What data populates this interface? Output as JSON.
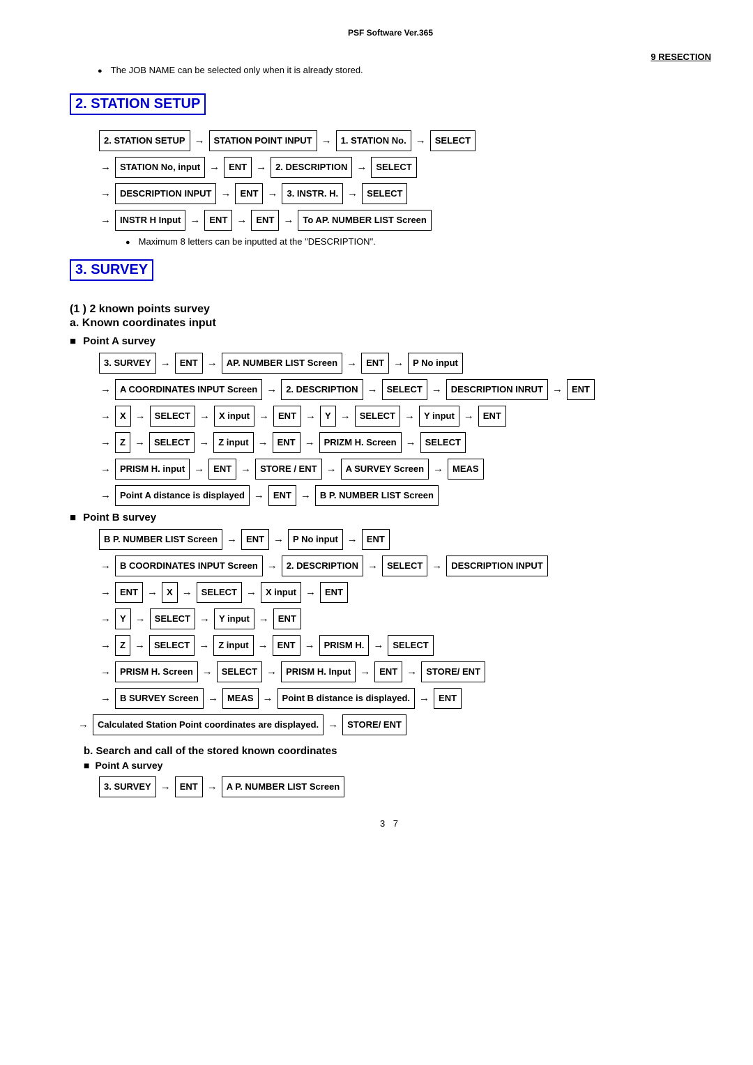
{
  "header": "PSF Software Ver.365",
  "topRight": "9   RESECTION",
  "intro": "The JOB NAME can be selected only when it is already stored.",
  "section2": {
    "title": "2. STATION SETUP",
    "lines": [
      [
        "2. STATION SETUP",
        "→",
        "STATION POINT INPUT",
        "→",
        "1. STATION No.",
        "→",
        "SELECT"
      ],
      [
        "→",
        "STATION No, input",
        "→",
        "ENT",
        "→",
        "2. DESCRIPTION",
        "→",
        "SELECT"
      ],
      [
        "→",
        "DESCRIPTION INPUT",
        "→",
        "ENT",
        "→",
        "3. INSTR. H.",
        "→",
        "SELECT"
      ],
      [
        "→",
        "INSTR H Input",
        "→",
        "ENT",
        "→",
        "ENT",
        "→",
        "To AP. NUMBER LIST Screen"
      ]
    ],
    "note": "Maximum 8 letters can be inputted at the \"DESCRIPTION\"."
  },
  "section3": {
    "title": "3. SURVEY",
    "subA": "(1 ) 2 known points survey",
    "subB": "a. Known coordinates input",
    "pointA": "Point A survey",
    "linesA": [
      [
        "3. SURVEY",
        "→",
        "ENT",
        "→",
        "AP. NUMBER LIST Screen",
        "→",
        "ENT",
        "→",
        "P No input"
      ],
      [
        "→",
        "A COORDINATES INPUT Screen",
        "→",
        "2. DESCRIPTION",
        "→",
        "SELECT",
        "→",
        "DESCRIPTION INRUT",
        "→",
        "ENT"
      ],
      [
        "→",
        "X",
        "→",
        "SELECT",
        "→",
        "X input",
        "→",
        "ENT",
        "→",
        "Y",
        "→",
        "SELECT",
        "→",
        "Y input",
        "→",
        "ENT"
      ],
      [
        "→",
        "Z",
        "→",
        "SELECT",
        "→",
        "Z input",
        "→",
        "ENT",
        "→",
        "PRIZM H. Screen",
        "→",
        "SELECT"
      ],
      [
        "→",
        "PRISM H. input",
        "→",
        "ENT",
        "→",
        "STORE / ENT",
        "→",
        "A SURVEY Screen",
        "→",
        "MEAS"
      ],
      [
        "→",
        "Point A distance is displayed",
        "→",
        "ENT",
        "→",
        "B P. NUMBER LIST Screen"
      ]
    ],
    "pointB": "Point B survey",
    "linesB": [
      [
        "B P. NUMBER LIST Screen",
        "→",
        "ENT",
        "→",
        "P No input",
        "→",
        "ENT"
      ],
      [
        "→",
        "B COORDINATES INPUT Screen",
        "→",
        "2. DESCRIPTION",
        "→",
        "SELECT",
        "→",
        "DESCRIPTION INPUT"
      ],
      [
        "→",
        "ENT",
        "→",
        "X",
        "→",
        "SELECT",
        "→",
        "X input",
        "→",
        "ENT"
      ],
      [
        "→",
        "Y",
        "→",
        "SELECT",
        "→",
        "Y input",
        "→",
        "ENT"
      ],
      [
        "→",
        "Z",
        "→",
        "SELECT",
        "→",
        "Z input",
        "→",
        "ENT",
        "→",
        "PRISM H.",
        "→",
        "SELECT"
      ],
      [
        "→",
        "PRISM H. Screen",
        "→",
        "SELECT",
        "→",
        "PRISM H. Input",
        "→",
        "ENT",
        "→",
        "STORE/ ENT"
      ],
      [
        "→",
        "B SURVEY Screen",
        "→",
        "MEAS",
        "→",
        "Point B distance is displayed.",
        "→",
        "ENT"
      ]
    ],
    "calcLine": [
      "→",
      "Calculated Station Point coordinates are displayed.",
      "→",
      "STORE/ ENT"
    ],
    "bTitle": "b. Search and call of the stored known coordinates",
    "bPointA": "Point A survey",
    "bLine": [
      "3. SURVEY",
      "→",
      "ENT",
      "→",
      "A P. NUMBER LIST Screen"
    ]
  },
  "pageNum": "3 7"
}
